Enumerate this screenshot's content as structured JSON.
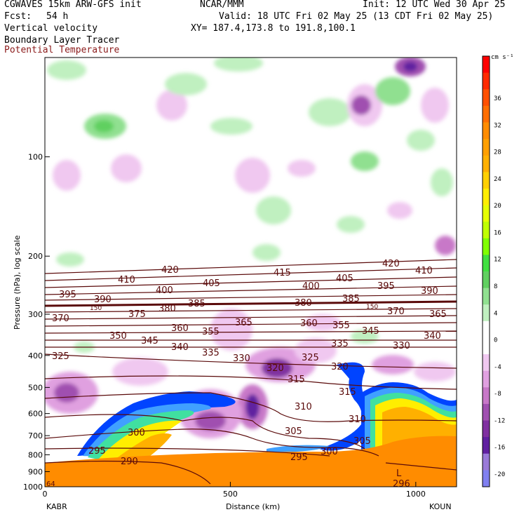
{
  "header": {
    "line1_left": "CGWAVES 15km ARW-GFS init",
    "line1_center": "NCAR/MMM",
    "line1_right": "Init: 12 UTC Wed 30 Apr 25",
    "fcst_label": "Fcst:",
    "fcst_value": "54 h",
    "valid": "Valid: 18 UTC Fri 02 May 25 (13 CDT Fri 02 May 25)",
    "xy": "XY= 187.4,173.8 to 191.8,100.1",
    "field1": "Vertical velocity",
    "field2": "Boundary Layer Tracer",
    "field3": "Potential Temperature",
    "field3_color": "#8b1a1a"
  },
  "chart_data": {
    "type": "heatmap",
    "xlabel": "Distance (km)",
    "ylabel": "Pressure (hPa), log scale",
    "xlim": [
      0,
      1110
    ],
    "ylim_hpa": [
      1000,
      50
    ],
    "y_log_scale": true,
    "x_ticks": [
      0,
      500,
      1000
    ],
    "y_ticks": [
      100,
      200,
      300,
      400,
      500,
      600,
      700,
      800,
      900,
      1000
    ],
    "left_endpoint": "KABR",
    "right_endpoint": "KOUN",
    "colorbar": {
      "units": "cm s⁻¹",
      "tick_labels": [
        "36",
        "32",
        "28",
        "24",
        "20",
        "16",
        "12",
        "8",
        "4",
        "0",
        "-4",
        "-8",
        "-12",
        "-16",
        "-20"
      ],
      "bottom_label": "",
      "colors_top_to_bottom": [
        "#ff0000",
        "#ff2a00",
        "#ff5000",
        "#ff6e00",
        "#ff8c00",
        "#ff9f00",
        "#ffb000",
        "#ffd000",
        "#ffee00",
        "#e6ff00",
        "#c0ff00",
        "#80ff00",
        "#40e040",
        "#60d060",
        "#90e090",
        "#c0f0c0",
        "#ffffff",
        "#ffffff",
        "#f0c8f0",
        "#e0a0e0",
        "#c878c8",
        "#a050b0",
        "#8030a0",
        "#6020a0",
        "#9a7ad8",
        "#8080f0"
      ]
    },
    "theta_contour_labels": [
      "420",
      "415",
      "420",
      "410",
      "410",
      "405",
      "400",
      "405",
      "400",
      "395",
      "390",
      "395",
      "390",
      "385",
      "380",
      "385",
      "150",
      "375",
      "380",
      "150",
      "370",
      "370",
      "365",
      "365",
      "360",
      "355",
      "360",
      "355",
      "345",
      "350",
      "345",
      "340",
      "335",
      "330",
      "335",
      "340",
      "330",
      "325",
      "325",
      "320",
      "320",
      "315",
      "315",
      "310",
      "300",
      "305",
      "310",
      "305",
      "295",
      "300",
      "295",
      "290",
      "296",
      "64",
      "L"
    ],
    "series": [
      {
        "name": "Vertical velocity",
        "kind": "shaded"
      },
      {
        "name": "Boundary Layer Tracer",
        "kind": "shaded"
      },
      {
        "name": "Potential Temperature",
        "kind": "contour",
        "color": "#8b1a1a"
      }
    ]
  }
}
